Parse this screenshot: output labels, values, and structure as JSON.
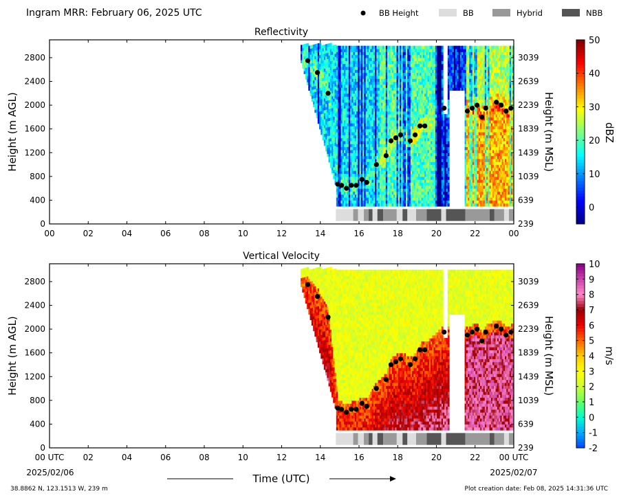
{
  "header": {
    "title": "Ingram MRR:  February 06, 2025 UTC"
  },
  "legend": [
    {
      "label": "BB Height",
      "kind": "dot",
      "color": "#000000"
    },
    {
      "label": "BB",
      "kind": "patch",
      "color": "#dddddd"
    },
    {
      "label": "Hybrid",
      "kind": "patch",
      "color": "#999999"
    },
    {
      "label": "NBB",
      "kind": "patch",
      "color": "#555555"
    }
  ],
  "footer": {
    "location": "38.8862 N, 123.1513 W, 239 m",
    "creation": "Plot creation date: Feb 08, 2025 14:31:36 UTC",
    "start_date": "2025/02/06",
    "end_date": "2025/02/07",
    "xlabel": "Time (UTC)"
  },
  "chart_data": [
    {
      "type": "heatmap",
      "title": "Reflectivity",
      "ylabel": "Height (m AGL)",
      "y2label": "Height (m MSL)",
      "colorbar_label": "dBZ",
      "xlim": [
        0,
        24
      ],
      "ylim": [
        0,
        3100
      ],
      "x_ticks": [
        "00",
        "02",
        "04",
        "06",
        "08",
        "10",
        "12",
        "14",
        "16",
        "18",
        "20",
        "22",
        "00"
      ],
      "y_ticks": [
        "0",
        "400",
        "800",
        "1200",
        "1600",
        "2000",
        "2400",
        "2800"
      ],
      "y2_ticks": [
        "239",
        "639",
        "1039",
        "1439",
        "1839",
        "2239",
        "2639",
        "3039"
      ],
      "colorbar_ticks": [
        "0",
        "10",
        "20",
        "30",
        "40",
        "50"
      ],
      "colorbar_range": [
        -5,
        50
      ],
      "colors": [
        "#00007f",
        "#0000ff",
        "#007fff",
        "#00ffff",
        "#7fff7f",
        "#ffff00",
        "#ff7f00",
        "#ff0000",
        "#7f0000"
      ]
    },
    {
      "type": "heatmap",
      "title": "Vertical Velocity",
      "ylabel": "Height (m AGL)",
      "y2label": "Height (m MSL)",
      "colorbar_label": "m/s",
      "xlim": [
        0,
        24
      ],
      "ylim": [
        0,
        3100
      ],
      "x_ticks": [
        "00 UTC",
        "02",
        "04",
        "06",
        "08",
        "10",
        "12",
        "14",
        "16",
        "18",
        "20",
        "22",
        "00 UTC"
      ],
      "y_ticks": [
        "0",
        "400",
        "800",
        "1200",
        "1600",
        "2000",
        "2400",
        "2800"
      ],
      "y2_ticks": [
        "239",
        "639",
        "1039",
        "1439",
        "1839",
        "2239",
        "2639",
        "3039"
      ],
      "colorbar_ticks": [
        "-2",
        "-1",
        "0",
        "1",
        "2",
        "3",
        "4",
        "5",
        "6",
        "7",
        "8",
        "9",
        "10"
      ],
      "colorbar_range": [
        -2,
        10
      ],
      "colors": [
        "#0044ff",
        "#00aaff",
        "#00ffcc",
        "#66ff66",
        "#ccff33",
        "#ffff00",
        "#ffcc00",
        "#ff6600",
        "#ee0000",
        "#990000",
        "#ff88cc",
        "#cc44aa",
        "#880088"
      ]
    }
  ],
  "bb_heights": {
    "x": [
      13.35,
      13.85,
      14.4,
      14.9,
      15.1,
      15.35,
      15.6,
      15.85,
      16.15,
      16.4,
      16.9,
      17.4,
      17.65,
      17.9,
      18.15,
      18.65,
      18.9,
      19.15,
      19.4,
      20.4,
      21.6,
      21.85,
      22.1,
      22.35,
      22.55,
      23.1,
      23.35,
      23.6,
      23.85
    ],
    "y": [
      2750,
      2550,
      2200,
      670,
      650,
      600,
      650,
      650,
      750,
      700,
      1000,
      1150,
      1400,
      1450,
      1500,
      1400,
      1500,
      1650,
      1650,
      1950,
      1900,
      1950,
      2000,
      1800,
      1950,
      2050,
      2000,
      1900,
      1950
    ]
  },
  "bb_type_bar": [
    {
      "x0": 14.8,
      "x1": 15.7,
      "type": "BB"
    },
    {
      "x0": 15.7,
      "x1": 15.95,
      "type": "Hybrid"
    },
    {
      "x0": 15.95,
      "x1": 16.25,
      "type": "BB"
    },
    {
      "x0": 16.25,
      "x1": 16.5,
      "type": "Hybrid"
    },
    {
      "x0": 16.5,
      "x1": 16.7,
      "type": "NBB"
    },
    {
      "x0": 16.7,
      "x1": 16.95,
      "type": "BB"
    },
    {
      "x0": 16.95,
      "x1": 17.25,
      "type": "NBB"
    },
    {
      "x0": 17.25,
      "x1": 17.95,
      "type": "Hybrid"
    },
    {
      "x0": 17.95,
      "x1": 18.25,
      "type": "BB"
    },
    {
      "x0": 18.25,
      "x1": 18.5,
      "type": "NBB"
    },
    {
      "x0": 18.5,
      "x1": 18.95,
      "type": "BB"
    },
    {
      "x0": 18.95,
      "x1": 19.5,
      "type": "Hybrid"
    },
    {
      "x0": 19.5,
      "x1": 20.25,
      "type": "NBB"
    },
    {
      "x0": 20.25,
      "x1": 20.5,
      "type": "BB"
    },
    {
      "x0": 20.5,
      "x1": 21.5,
      "type": "NBB"
    },
    {
      "x0": 21.5,
      "x1": 22.75,
      "type": "Hybrid"
    },
    {
      "x0": 22.75,
      "x1": 23.0,
      "type": "NBB"
    },
    {
      "x0": 23.0,
      "x1": 23.5,
      "type": "Hybrid"
    },
    {
      "x0": 23.5,
      "x1": 23.75,
      "type": "BB"
    },
    {
      "x0": 23.75,
      "x1": 24.0,
      "type": "Hybrid"
    }
  ]
}
